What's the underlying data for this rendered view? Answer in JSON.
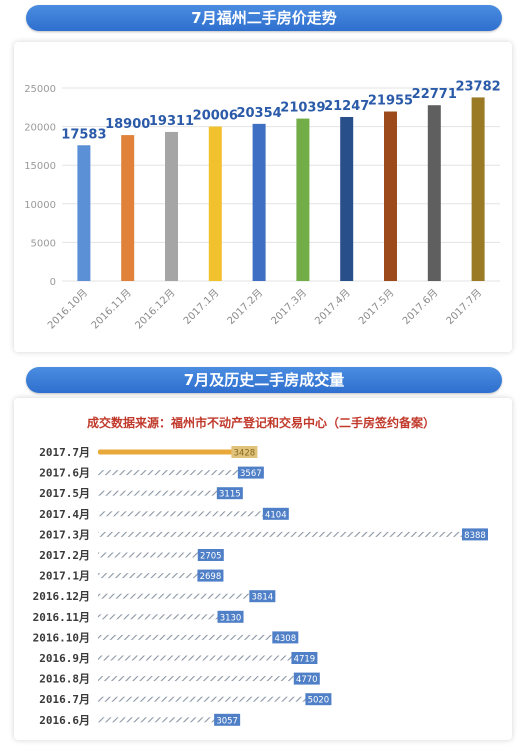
{
  "header1": {
    "title": "7月福州二手房价走势"
  },
  "header2": {
    "title": "7月及历史二手房成交量"
  },
  "source_note": "成交数据来源：福州市不动产登记和交易中心（二手房签约备案）",
  "chart_data": [
    {
      "type": "bar",
      "title": "7月福州二手房价走势",
      "categories": [
        "2016.10月",
        "2016.11月",
        "2016.12月",
        "2017.1月",
        "2017.2月",
        "2017.3月",
        "2017.4月",
        "2017.5月",
        "2017.6月",
        "2017.7月"
      ],
      "values": [
        17583,
        18900,
        19311,
        20006,
        20354,
        21039,
        21247,
        21955,
        22771,
        23782
      ],
      "colors": [
        "#5b8fd6",
        "#e0823a",
        "#a5a5a5",
        "#f2c12e",
        "#3e6fc2",
        "#72ad47",
        "#284f8a",
        "#9c4a1b",
        "#5f5f5f",
        "#9b7a26"
      ],
      "ylim": [
        0,
        25000
      ],
      "yticks": [
        0,
        5000,
        10000,
        15000,
        20000,
        25000
      ],
      "grid": true,
      "xlabel": "",
      "ylabel": ""
    },
    {
      "type": "bar",
      "orientation": "horizontal",
      "title": "7月及历史二手房成交量",
      "categories": [
        "2017.7月",
        "2017.6月",
        "2017.5月",
        "2017.4月",
        "2017.3月",
        "2017.2月",
        "2017.1月",
        "2016.12月",
        "2016.11月",
        "2016.10月",
        "2016.9月",
        "2016.8月",
        "2016.7月",
        "2016.6月"
      ],
      "values": [
        3428,
        3567,
        3115,
        4104,
        8388,
        2705,
        2698,
        3814,
        3130,
        4308,
        4719,
        4770,
        5020,
        3057
      ],
      "highlight_color": "#e9a93a",
      "bar_color": "#9aa3ae",
      "label_bg": "#4f7fc7"
    }
  ]
}
